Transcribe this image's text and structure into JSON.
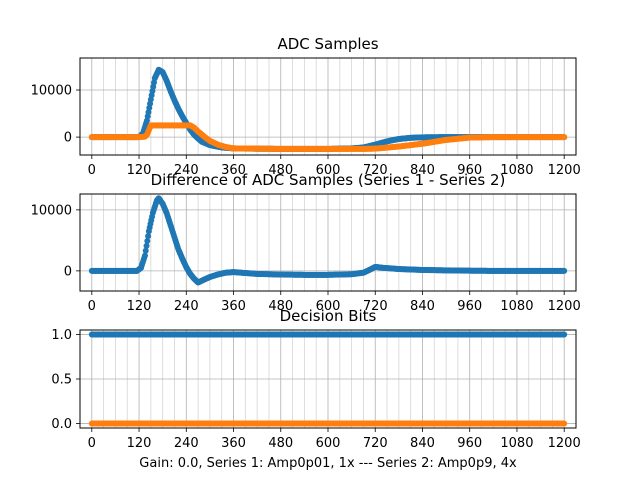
{
  "figure": {
    "xlabel": "Gain: 0.0, Series 1: Amp0p01, 1x --- Series 2: Amp0p9, 4x",
    "colors": {
      "series1": "#1f77b4",
      "series2": "#ff7f0e",
      "grid": "#b0b0b0"
    }
  },
  "chart_data": [
    {
      "type": "scatter",
      "title": "ADC Samples",
      "xlim": [
        -30,
        1230
      ],
      "ylim": [
        -3800,
        16800
      ],
      "xticks": [
        0,
        120,
        240,
        360,
        480,
        600,
        720,
        840,
        960,
        1080,
        1200
      ],
      "xtick_labels": [
        "0",
        "120",
        "240",
        "360",
        "480",
        "600",
        "720",
        "840",
        "960",
        "1080",
        "1200"
      ],
      "yticks": [
        0,
        10000
      ],
      "ytick_labels": [
        "0",
        "10000"
      ],
      "grid": true,
      "series": [
        {
          "name": "Series 1",
          "color": "#1f77b4",
          "points": [
            [
              0,
              0
            ],
            [
              60,
              0
            ],
            [
              100,
              0
            ],
            [
              120,
              0
            ],
            [
              130,
              800
            ],
            [
              140,
              3500
            ],
            [
              150,
              8000
            ],
            [
              160,
              12500
            ],
            [
              170,
              14300
            ],
            [
              180,
              13800
            ],
            [
              190,
              12000
            ],
            [
              200,
              9800
            ],
            [
              210,
              7800
            ],
            [
              220,
              6000
            ],
            [
              230,
              4400
            ],
            [
              240,
              3000
            ],
            [
              250,
              1600
            ],
            [
              260,
              500
            ],
            [
              270,
              -300
            ],
            [
              280,
              -1000
            ],
            [
              300,
              -1700
            ],
            [
              330,
              -2200
            ],
            [
              360,
              -2400
            ],
            [
              400,
              -2450
            ],
            [
              480,
              -2500
            ],
            [
              600,
              -2500
            ],
            [
              660,
              -2400
            ],
            [
              690,
              -2200
            ],
            [
              720,
              -1600
            ],
            [
              750,
              -900
            ],
            [
              780,
              -400
            ],
            [
              810,
              -150
            ],
            [
              840,
              -50
            ],
            [
              900,
              0
            ],
            [
              1000,
              0
            ],
            [
              1100,
              0
            ],
            [
              1200,
              0
            ]
          ]
        },
        {
          "name": "Series 2",
          "color": "#ff7f0e",
          "points": [
            [
              0,
              0
            ],
            [
              60,
              0
            ],
            [
              120,
              0
            ],
            [
              135,
              100
            ],
            [
              140,
              500
            ],
            [
              150,
              2500
            ],
            [
              200,
              2500
            ],
            [
              250,
              2500
            ],
            [
              260,
              2000
            ],
            [
              270,
              1200
            ],
            [
              280,
              500
            ],
            [
              290,
              -200
            ],
            [
              300,
              -800
            ],
            [
              320,
              -1600
            ],
            [
              340,
              -2100
            ],
            [
              360,
              -2400
            ],
            [
              420,
              -2450
            ],
            [
              480,
              -2500
            ],
            [
              600,
              -2500
            ],
            [
              690,
              -2500
            ],
            [
              720,
              -2450
            ],
            [
              780,
              -2000
            ],
            [
              840,
              -1400
            ],
            [
              900,
              -600
            ],
            [
              960,
              -100
            ],
            [
              1020,
              0
            ],
            [
              1100,
              0
            ],
            [
              1200,
              0
            ]
          ]
        }
      ]
    },
    {
      "type": "scatter",
      "title": "Difference of ADC Samples (Series 1 - Series 2)",
      "xlim": [
        -30,
        1230
      ],
      "ylim": [
        -3300,
        12600
      ],
      "xticks": [
        0,
        120,
        240,
        360,
        480,
        600,
        720,
        840,
        960,
        1080,
        1200
      ],
      "xtick_labels": [
        "0",
        "120",
        "240",
        "360",
        "480",
        "600",
        "720",
        "840",
        "960",
        "1080",
        "1200"
      ],
      "yticks": [
        0,
        10000
      ],
      "ytick_labels": [
        "0",
        "10000"
      ],
      "grid": true,
      "series": [
        {
          "name": "Series 1 - Series 2",
          "color": "#1f77b4",
          "points": [
            [
              0,
              0
            ],
            [
              60,
              0
            ],
            [
              100,
              0
            ],
            [
              115,
              0
            ],
            [
              125,
              500
            ],
            [
              135,
              2500
            ],
            [
              145,
              6500
            ],
            [
              155,
              9500
            ],
            [
              165,
              11500
            ],
            [
              170,
              11900
            ],
            [
              180,
              11000
            ],
            [
              190,
              9500
            ],
            [
              200,
              7500
            ],
            [
              210,
              5500
            ],
            [
              220,
              3500
            ],
            [
              230,
              2000
            ],
            [
              240,
              600
            ],
            [
              250,
              -500
            ],
            [
              260,
              -1300
            ],
            [
              270,
              -1900
            ],
            [
              280,
              -1600
            ],
            [
              300,
              -1000
            ],
            [
              320,
              -600
            ],
            [
              340,
              -300
            ],
            [
              360,
              -200
            ],
            [
              380,
              -300
            ],
            [
              420,
              -500
            ],
            [
              480,
              -600
            ],
            [
              540,
              -650
            ],
            [
              600,
              -650
            ],
            [
              660,
              -550
            ],
            [
              690,
              -300
            ],
            [
              710,
              300
            ],
            [
              720,
              650
            ],
            [
              740,
              500
            ],
            [
              780,
              300
            ],
            [
              840,
              150
            ],
            [
              900,
              80
            ],
            [
              960,
              30
            ],
            [
              1020,
              0
            ],
            [
              1100,
              0
            ],
            [
              1200,
              0
            ]
          ]
        }
      ]
    },
    {
      "type": "scatter",
      "title": "Decision Bits",
      "xlim": [
        -30,
        1230
      ],
      "ylim": [
        -0.05,
        1.05
      ],
      "xticks": [
        0,
        120,
        240,
        360,
        480,
        600,
        720,
        840,
        960,
        1080,
        1200
      ],
      "xtick_labels": [
        "0",
        "120",
        "240",
        "360",
        "480",
        "600",
        "720",
        "840",
        "960",
        "1080",
        "1200"
      ],
      "yticks": [
        0,
        0.5,
        1
      ],
      "ytick_labels": [
        "0.0",
        "0.5",
        "1.0"
      ],
      "grid": true,
      "series": [
        {
          "name": "Series 1",
          "color": "#1f77b4",
          "points": [
            [
              0,
              1
            ],
            [
              1200,
              1
            ]
          ]
        },
        {
          "name": "Series 2",
          "color": "#ff7f0e",
          "points": [
            [
              0,
              0
            ],
            [
              1200,
              0
            ]
          ]
        }
      ]
    }
  ]
}
